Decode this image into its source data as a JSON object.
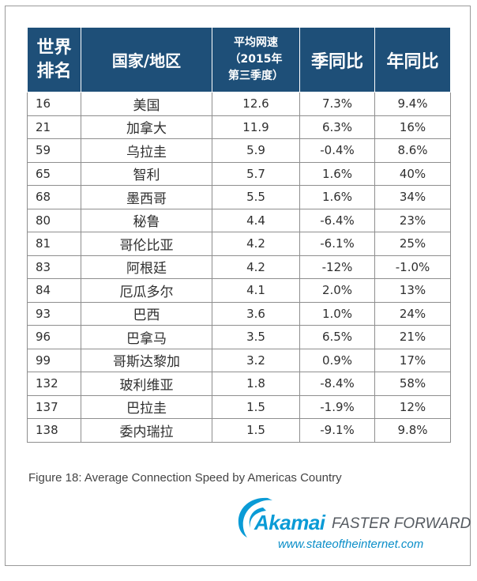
{
  "table": {
    "headers": {
      "rank": [
        "世界",
        "排名"
      ],
      "region": "国家/地区",
      "speed": [
        "平均网速",
        "（2015年",
        "第三季度）"
      ],
      "qoq": "季同比",
      "yoy": "年同比"
    },
    "rows": [
      {
        "rank": "16",
        "region": "美国",
        "speed": "12.6",
        "qoq": "7.3%",
        "yoy": "9.4%"
      },
      {
        "rank": "21",
        "region": "加拿大",
        "speed": "11.9",
        "qoq": "6.3%",
        "yoy": "16%"
      },
      {
        "rank": "59",
        "region": "乌拉圭",
        "speed": "5.9",
        "qoq": "-0.4%",
        "yoy": "8.6%"
      },
      {
        "rank": "65",
        "region": "智利",
        "speed": "5.7",
        "qoq": "1.6%",
        "yoy": "40%"
      },
      {
        "rank": "68",
        "region": "墨西哥",
        "speed": "5.5",
        "qoq": "1.6%",
        "yoy": "34%"
      },
      {
        "rank": "80",
        "region": "秘鲁",
        "speed": "4.4",
        "qoq": "-6.4%",
        "yoy": "23%"
      },
      {
        "rank": "81",
        "region": "哥伦比亚",
        "speed": "4.2",
        "qoq": "-6.1%",
        "yoy": "25%"
      },
      {
        "rank": "83",
        "region": "阿根廷",
        "speed": "4.2",
        "qoq": "-12%",
        "yoy": "-1.0%"
      },
      {
        "rank": "84",
        "region": "厄瓜多尔",
        "speed": "4.1",
        "qoq": "2.0%",
        "yoy": "13%"
      },
      {
        "rank": "93",
        "region": "巴西",
        "speed": "3.6",
        "qoq": "1.0%",
        "yoy": "24%"
      },
      {
        "rank": "96",
        "region": "巴拿马",
        "speed": "3.5",
        "qoq": "6.5%",
        "yoy": "21%"
      },
      {
        "rank": "99",
        "region": "哥斯达黎加",
        "speed": "3.2",
        "qoq": "0.9%",
        "yoy": "17%"
      },
      {
        "rank": "132",
        "region": "玻利维亚",
        "speed": "1.8",
        "qoq": "-8.4%",
        "yoy": "58%"
      },
      {
        "rank": "137",
        "region": "巴拉圭",
        "speed": "1.5",
        "qoq": "-1.9%",
        "yoy": "12%"
      },
      {
        "rank": "138",
        "region": "委内瑞拉",
        "speed": "1.5",
        "qoq": "-9.1%",
        "yoy": "9.8%"
      }
    ]
  },
  "caption": "Figure 18: Average Connection Speed by Americas Country",
  "logo": {
    "brand": "Akamai",
    "tagline": "FASTER FORWARD",
    "url": "www.stateoftheinternet.com",
    "icon": "akamai-wave-icon",
    "brand_color": "#0a9bd6"
  },
  "colors": {
    "header_bg": "#1e4f78",
    "header_text": "#ffffff",
    "border": "#8e8e8e"
  }
}
